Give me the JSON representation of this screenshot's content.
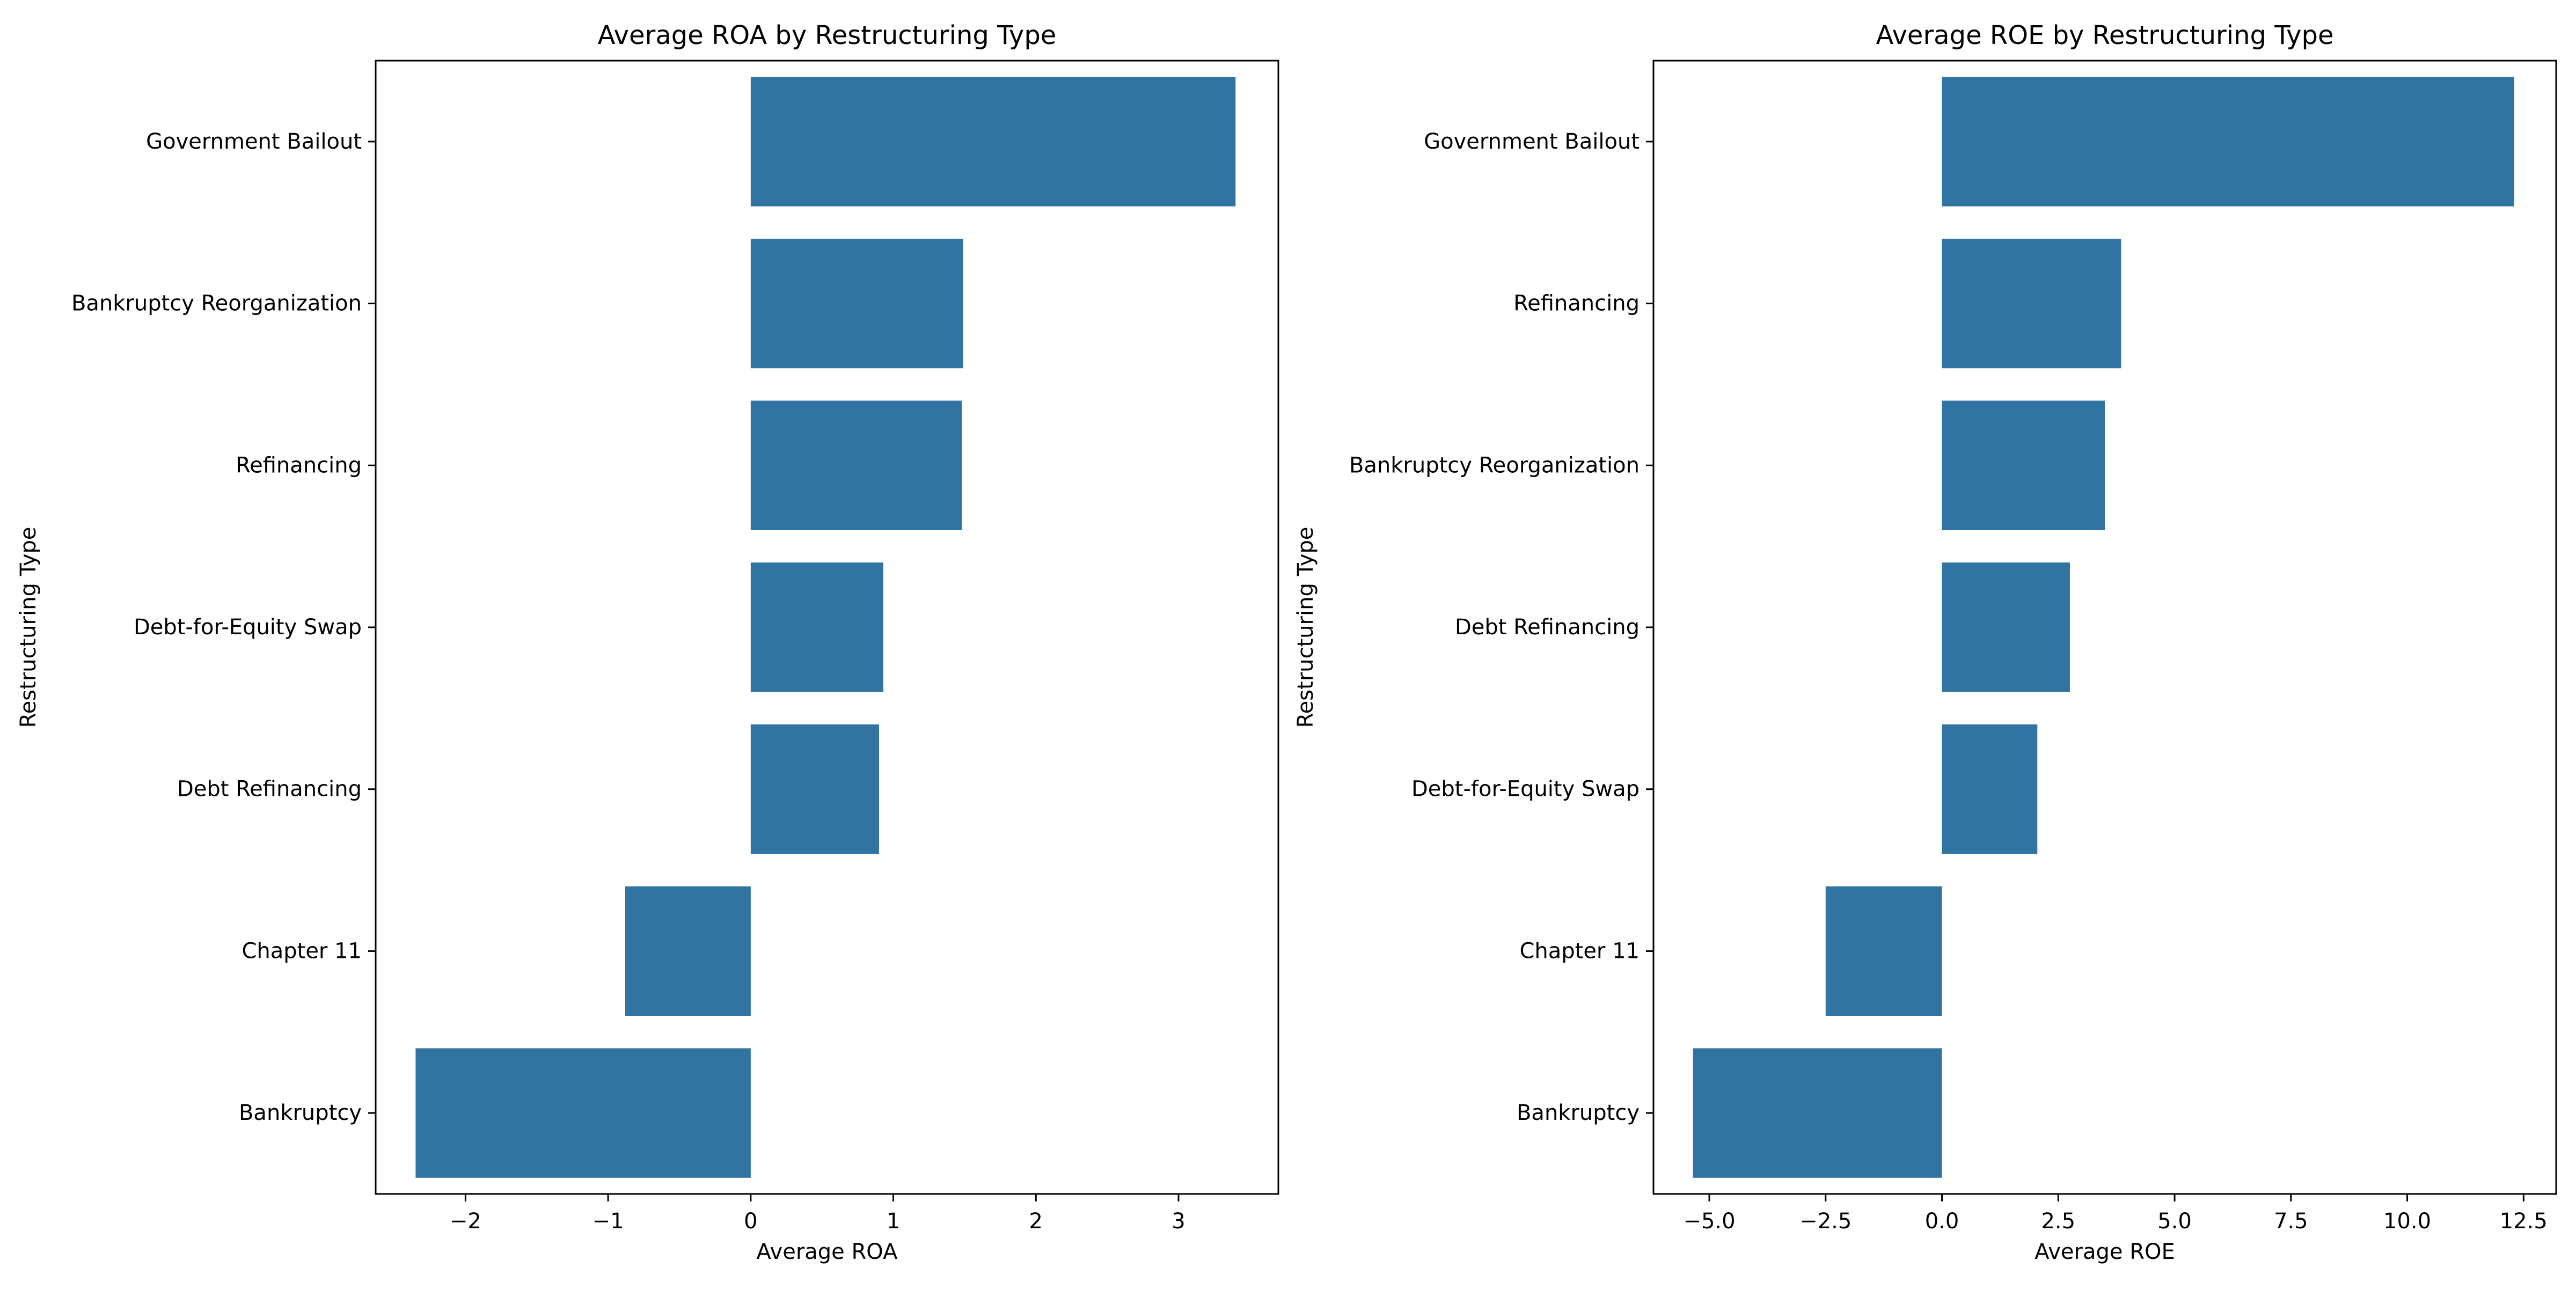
{
  "chart_data": [
    {
      "type": "bar",
      "orientation": "horizontal",
      "title": "Average ROA by Restructuring Type",
      "xlabel": "Average ROA",
      "ylabel": "Restructuring Type",
      "categories": [
        "Government Bailout",
        "Bankruptcy Reorganization",
        "Refinancing",
        "Debt-for-Equity Swap",
        "Debt Refinancing",
        "Chapter 11",
        "Bankruptcy"
      ],
      "values": [
        3.4,
        1.49,
        1.48,
        0.93,
        0.9,
        -0.88,
        -2.35
      ],
      "xlim": [
        -2.63,
        3.7
      ],
      "xticks": [
        -2,
        -1,
        0,
        1,
        2,
        3
      ],
      "xtick_labels": [
        "−2",
        "−1",
        "0",
        "1",
        "2",
        "3"
      ],
      "grid": false,
      "bar_color": "#3274a1"
    },
    {
      "type": "bar",
      "orientation": "horizontal",
      "title": "Average ROE by Restructuring Type",
      "xlabel": "Average ROE",
      "ylabel": "Restructuring Type",
      "categories": [
        "Government Bailout",
        "Refinancing",
        "Bankruptcy Reorganization",
        "Debt Refinancing",
        "Debt-for-Equity Swap",
        "Chapter 11",
        "Bankruptcy"
      ],
      "values": [
        12.3,
        3.85,
        3.5,
        2.75,
        2.05,
        -2.5,
        -5.35
      ],
      "xlim": [
        -6.2,
        13.2
      ],
      "xticks": [
        -5,
        -2.5,
        0,
        2.5,
        5,
        7.5,
        10,
        12.5
      ],
      "xtick_labels": [
        "−5.0",
        "−2.5",
        "0.0",
        "2.5",
        "5.0",
        "7.5",
        "10.0",
        "12.5"
      ],
      "grid": false,
      "bar_color": "#3274a1"
    }
  ]
}
